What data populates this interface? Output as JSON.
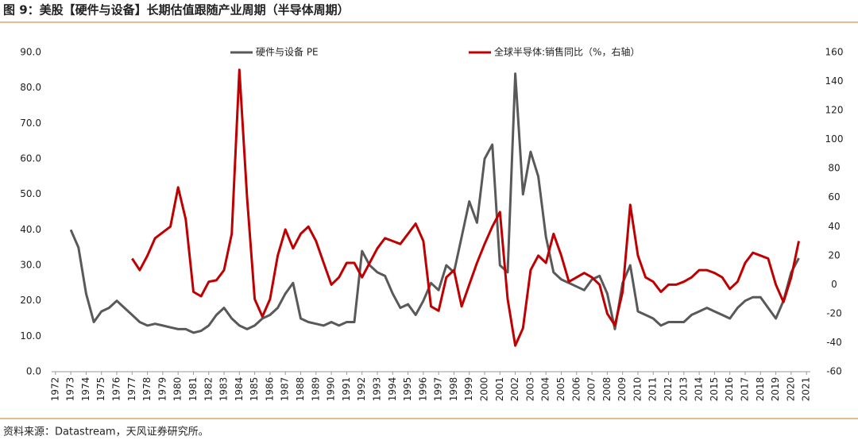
{
  "chart_data": {
    "type": "line",
    "title": "图 9：美股【硬件与设备】长期估值跟随产业周期（半导体周期）",
    "source": "资料来源：Datastream，天风证券研究所。",
    "legend": "top",
    "x": [
      1973.0,
      1973.5,
      1974.0,
      1974.5,
      1975.0,
      1975.5,
      1976.0,
      1976.5,
      1977.0,
      1977.5,
      1978.0,
      1978.5,
      1979.0,
      1979.5,
      1980.0,
      1980.5,
      1981.0,
      1981.5,
      1982.0,
      1982.5,
      1983.0,
      1983.5,
      1984.0,
      1984.5,
      1985.0,
      1985.5,
      1986.0,
      1986.5,
      1987.0,
      1987.5,
      1988.0,
      1988.5,
      1989.0,
      1989.5,
      1990.0,
      1990.5,
      1991.0,
      1991.5,
      1992.0,
      1992.5,
      1993.0,
      1993.5,
      1994.0,
      1994.5,
      1995.0,
      1995.5,
      1996.0,
      1996.5,
      1997.0,
      1997.5,
      1998.0,
      1998.5,
      1999.0,
      1999.5,
      2000.0,
      2000.5,
      2001.0,
      2001.5,
      2002.0,
      2002.5,
      2003.0,
      2003.5,
      2004.0,
      2004.5,
      2005.0,
      2005.5,
      2006.0,
      2006.5,
      2007.0,
      2007.5,
      2008.0,
      2008.5,
      2009.0,
      2009.5,
      2010.0,
      2010.5,
      2011.0,
      2011.5,
      2012.0,
      2012.5,
      2013.0,
      2013.5,
      2014.0,
      2014.5,
      2015.0,
      2015.5,
      2016.0,
      2016.5,
      2017.0,
      2017.5,
      2018.0,
      2018.5,
      2019.0,
      2019.5,
      2020.0,
      2020.5
    ],
    "xlim": [
      1971.75,
      2021.25
    ],
    "xticks": [
      1972,
      1973,
      1974,
      1975,
      1976,
      1977,
      1978,
      1979,
      1980,
      1981,
      1982,
      1983,
      1984,
      1985,
      1986,
      1987,
      1988,
      1989,
      1990,
      1991,
      1992,
      1993,
      1994,
      1995,
      1996,
      1997,
      1998,
      1999,
      2000,
      2001,
      2002,
      2003,
      2004,
      2005,
      2006,
      2007,
      2008,
      2009,
      2010,
      2011,
      2012,
      2013,
      2014,
      2015,
      2016,
      2017,
      2018,
      2019,
      2020,
      2021
    ],
    "ylim": [
      0,
      90
    ],
    "yticks": [
      {
        "value": 0,
        "label": "0.0"
      },
      {
        "value": 10,
        "label": "10.0"
      },
      {
        "value": 20,
        "label": "20.0"
      },
      {
        "value": 30,
        "label": "30.0"
      },
      {
        "value": 40,
        "label": "40.0"
      },
      {
        "value": 50,
        "label": "50.0"
      },
      {
        "value": 60,
        "label": "60.0"
      },
      {
        "value": 70,
        "label": "70.0"
      },
      {
        "value": 80,
        "label": "80.0"
      },
      {
        "value": 90,
        "label": "90.0"
      }
    ],
    "y2lim": [
      -60,
      160
    ],
    "y2ticks": [
      -60,
      -40,
      -20,
      0,
      20,
      40,
      60,
      80,
      100,
      120,
      140,
      160
    ],
    "series": [
      {
        "name": "硬件与设备 PE",
        "color": "#595959",
        "values": [
          40,
          35,
          22,
          14,
          17,
          18,
          20,
          18,
          16,
          14,
          13,
          13.5,
          13,
          12.5,
          12,
          12,
          11,
          11.5,
          13,
          16,
          18,
          15,
          13,
          12,
          13,
          15,
          16,
          18,
          22,
          25,
          15,
          14,
          13.5,
          13,
          14,
          13,
          14,
          14,
          34,
          30,
          28,
          27,
          22,
          18,
          19,
          16,
          20,
          25,
          23,
          30,
          28,
          38,
          48,
          42,
          60,
          64,
          30,
          28,
          84,
          50,
          62,
          55,
          38,
          28,
          26,
          25,
          24,
          23,
          26,
          27,
          22,
          12,
          25,
          30,
          17,
          16,
          15,
          13,
          14,
          14,
          14,
          16,
          17,
          18,
          17,
          16,
          15,
          18,
          20,
          21,
          21,
          18,
          15,
          20,
          28,
          32
        ]
      },
      {
        "name": "全球半导体:销售同比（%，右轴）",
        "color": "#c00000",
        "axis": "y2",
        "values": [
          null,
          null,
          null,
          null,
          null,
          null,
          null,
          null,
          18,
          10,
          20,
          32,
          36,
          40,
          67,
          45,
          -5,
          -8,
          2,
          3,
          10,
          35,
          148,
          60,
          -10,
          -22,
          -10,
          20,
          38,
          25,
          35,
          40,
          30,
          15,
          0,
          5,
          15,
          15,
          5,
          15,
          25,
          32,
          30,
          28,
          35,
          42,
          30,
          -15,
          -18,
          5,
          10,
          -15,
          0,
          15,
          28,
          40,
          50,
          -10,
          -42,
          -30,
          10,
          20,
          15,
          35,
          20,
          2,
          5,
          8,
          5,
          0,
          -20,
          -28,
          -5,
          55,
          20,
          5,
          2,
          -5,
          0,
          0,
          2,
          5,
          10,
          10,
          8,
          5,
          -3,
          2,
          15,
          22,
          20,
          18,
          0,
          -12,
          5,
          30
        ]
      }
    ]
  }
}
